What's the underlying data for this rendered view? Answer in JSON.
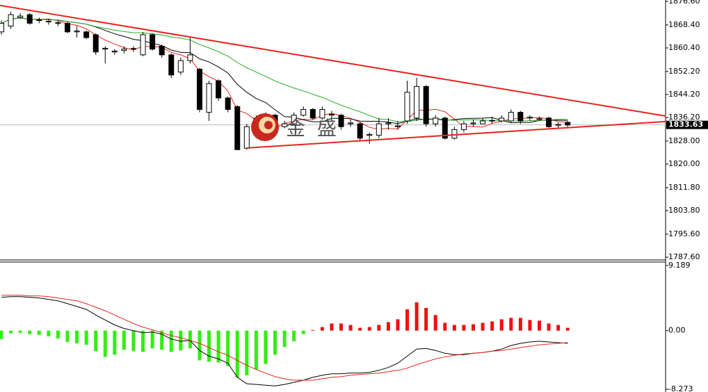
{
  "chart_data": [
    {
      "type": "candlestick",
      "open": [
        1866,
        1868,
        1871,
        1872,
        1870,
        1869.5,
        1869,
        1869,
        1866,
        1866,
        1865,
        1860,
        1859,
        1859.5,
        1860,
        1858,
        1865,
        1861,
        1858,
        1852,
        1856,
        1853,
        1838,
        1849,
        1843,
        1840,
        1825.5,
        1834,
        1836,
        1837,
        1833,
        1834,
        1837,
        1839,
        1836,
        1837,
        1837,
        1834,
        1834,
        1830,
        1830,
        1834,
        1833,
        1835,
        1836,
        1847,
        1834,
        1836,
        1829,
        1832,
        1834,
        1834,
        1835,
        1835,
        1835,
        1838,
        1836,
        1835.5,
        1836,
        1833.5,
        1834.5
      ],
      "high": [
        1870,
        1873,
        1872.5,
        1872.5,
        1871,
        1870.5,
        1870,
        1869.5,
        1868,
        1866.5,
        1865.5,
        1861,
        1860,
        1861,
        1861,
        1866,
        1865.5,
        1861.5,
        1858.5,
        1857,
        1864,
        1853.5,
        1849,
        1849.5,
        1843.5,
        1840.5,
        1834,
        1837,
        1838,
        1837.5,
        1835,
        1838,
        1840,
        1839.5,
        1840,
        1838.5,
        1837.5,
        1835.5,
        1834.5,
        1831,
        1836,
        1836,
        1835,
        1849,
        1850,
        1847.5,
        1837,
        1836.5,
        1833,
        1835,
        1835.5,
        1836,
        1836.5,
        1837,
        1839,
        1838.5,
        1837,
        1836.5,
        1836.5,
        1834.5,
        1835
      ],
      "low": [
        1865,
        1867,
        1870.5,
        1868.5,
        1869,
        1868.5,
        1868,
        1865.5,
        1864,
        1863.5,
        1858,
        1855,
        1858,
        1858.5,
        1859,
        1857.5,
        1859.5,
        1857,
        1850,
        1851,
        1855,
        1838,
        1835,
        1842,
        1838,
        1825,
        1825,
        1833,
        1835,
        1830.5,
        1832.5,
        1833.5,
        1836.5,
        1835.5,
        1835.5,
        1836,
        1832,
        1833,
        1828,
        1827,
        1829,
        1832,
        1832,
        1834,
        1835,
        1833,
        1833,
        1828.5,
        1828.5,
        1831,
        1833,
        1834,
        1834,
        1834.5,
        1834.5,
        1834,
        1835,
        1835,
        1832.5,
        1832.5,
        1832.5
      ],
      "close": [
        1869,
        1872,
        1871.5,
        1869,
        1870.2,
        1869.7,
        1869.2,
        1866,
        1866.3,
        1864,
        1859,
        1860.3,
        1859.3,
        1860,
        1860.2,
        1865,
        1860,
        1858,
        1851,
        1856,
        1858,
        1839,
        1848,
        1843,
        1839,
        1825,
        1833,
        1836,
        1837,
        1831,
        1834,
        1837,
        1839,
        1836,
        1839,
        1837.3,
        1833,
        1834.3,
        1829,
        1830.3,
        1834,
        1834.3,
        1833.3,
        1845,
        1847,
        1834,
        1836,
        1829,
        1832,
        1834,
        1834.3,
        1835,
        1835.2,
        1836,
        1838,
        1835,
        1836.3,
        1835.8,
        1833,
        1833.8,
        1833.6
      ],
      "moving_averages": [
        {
          "period": 5,
          "color": "#e8231d"
        },
        {
          "period": 10,
          "color": "#000000"
        },
        {
          "period": 20,
          "color": "#22aa22"
        }
      ],
      "trendlines": [
        {
          "x": [
            -0.15,
            70.4
          ],
          "y": [
            1875.2,
            1836.7
          ],
          "color": "#e8231d"
        },
        {
          "x": [
            26,
            70.4
          ],
          "y": [
            1825.6,
            1834.8
          ],
          "color": "#e8231d"
        }
      ],
      "last_price": 1833.63,
      "watermark": "金 盛",
      "ylim": [
        1787.6,
        1876.6
      ],
      "yticks": [
        {
          "value": 1876.6,
          "label": "1876.60"
        },
        {
          "value": 1868.4,
          "label": "1868.40"
        },
        {
          "value": 1860.4,
          "label": "1860.40"
        },
        {
          "value": 1852.2,
          "label": "1852.20"
        },
        {
          "value": 1844.2,
          "label": "1844.20"
        },
        {
          "value": 1836.2,
          "label": "1836.20"
        },
        {
          "value": 1828,
          "label": "1828.00"
        },
        {
          "value": 1820,
          "label": "1820.00"
        },
        {
          "value": 1811.8,
          "label": "1811.80"
        },
        {
          "value": 1803.8,
          "label": "1803.80"
        },
        {
          "value": 1795.6,
          "label": "1795.60"
        },
        {
          "value": 1787.6,
          "label": "1787.60"
        }
      ]
    },
    {
      "type": "macd",
      "histogram": [
        -1.2,
        -0.4,
        -0.3,
        -0.5,
        -0.6,
        -0.8,
        -1.1,
        -1.6,
        -1.8,
        -2.0,
        -2.9,
        -3.7,
        -3.4,
        -2.7,
        -2.9,
        -3.0,
        -2.5,
        -2.7,
        -3.0,
        -2.8,
        -2.5,
        -4.2,
        -4.4,
        -4.5,
        -5.0,
        -6.6,
        -6.3,
        -5.5,
        -4.7,
        -3.4,
        -2.3,
        -1.5,
        -0.5,
        0.1,
        0.5,
        1.0,
        1.0,
        0.8,
        0.4,
        0.5,
        0.8,
        1.2,
        1.6,
        3.0,
        4.0,
        3.2,
        2.2,
        1.1,
        0.8,
        0.8,
        0.9,
        1.1,
        1.3,
        1.6,
        1.8,
        1.8,
        1.5,
        1.4,
        1.0,
        0.8,
        0.4
      ],
      "positive_color": "#ee1111",
      "negative_color": "#33ee11",
      "series": [
        {
          "color": "#000000",
          "values": [
            4.7,
            4.8,
            4.8,
            4.7,
            4.6,
            4.4,
            4.2,
            3.8,
            3.4,
            3.0,
            2.2,
            1.5,
            0.8,
            0.3,
            0,
            -0.3,
            -0.2,
            -0.5,
            -1.2,
            -1.5,
            -1.4,
            -2.8,
            -3.6,
            -4.0,
            -4.6,
            -6.6,
            -7.5,
            -7.6,
            -7.7,
            -7.8,
            -7.6,
            -7.3,
            -7.0,
            -6.6,
            -6.3,
            -6.1,
            -6.1,
            -6.0,
            -6.0,
            -5.9,
            -5.6,
            -5.2,
            -4.6,
            -3.6,
            -2.6,
            -2.5,
            -2.8,
            -3.2,
            -3.4,
            -3.4,
            -3.2,
            -3.1,
            -2.9,
            -2.6,
            -2.1,
            -1.8,
            -1.6,
            -1.5,
            -1.6,
            -1.7,
            -1.8
          ]
        },
        {
          "color": "#e8231d",
          "values": [
            5.0,
            5.0,
            5.0,
            4.9,
            4.9,
            4.8,
            4.6,
            4.4,
            4.2,
            3.8,
            3.3,
            2.8,
            2.2,
            1.6,
            1.0,
            0.5,
            0.1,
            -0.3,
            -0.7,
            -1.0,
            -1.4,
            -1.8,
            -2.4,
            -3.0,
            -3.5,
            -4.2,
            -4.9,
            -5.5,
            -6.0,
            -6.5,
            -6.8,
            -7.0,
            -7.0,
            -7.0,
            -6.8,
            -6.6,
            -6.5,
            -6.3,
            -6.2,
            -6.1,
            -6.0,
            -5.8,
            -5.6,
            -5.3,
            -4.8,
            -4.4,
            -4.0,
            -3.7,
            -3.5,
            -3.3,
            -3.2,
            -3.1,
            -2.9,
            -2.8,
            -2.6,
            -2.4,
            -2.2,
            -2.0,
            -1.9,
            -1.8,
            -1.7
          ]
        }
      ],
      "ylim": [
        -8.273,
        9.189
      ],
      "yticks": [
        9.189,
        {
          "value": 0,
          "label": "0.00"
        },
        -8.273
      ]
    }
  ]
}
